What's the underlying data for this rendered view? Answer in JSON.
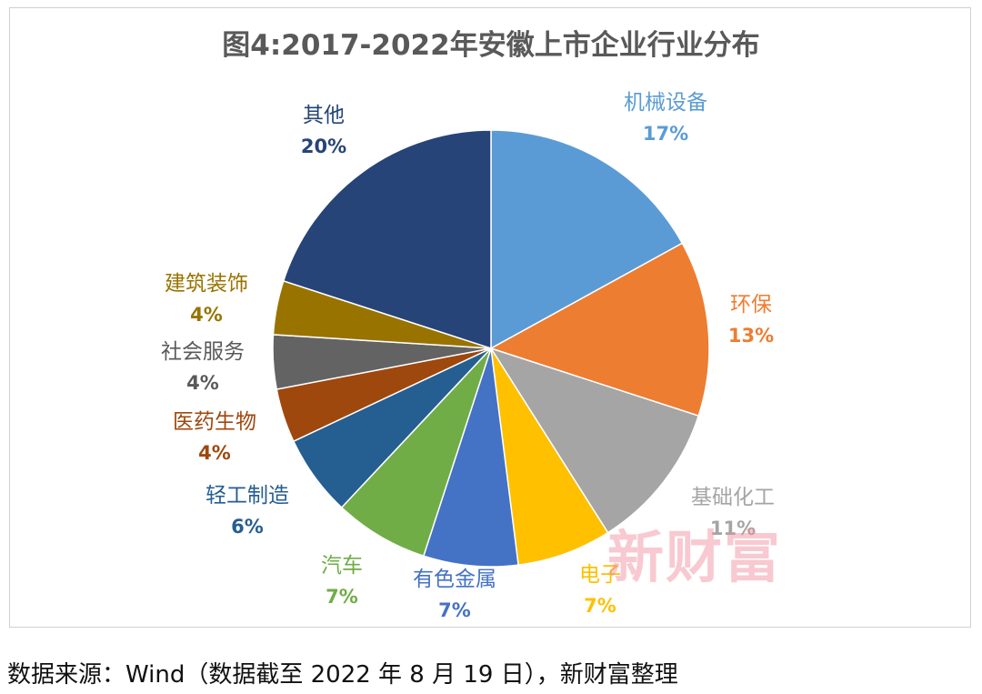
{
  "title": "图4:2017-2022年安徽上市企业行业分布",
  "source": "数据来源：Wind（数据截至 2022 年 8 月 19 日），新财富整理",
  "watermark": "新财富",
  "chart_data": {
    "type": "pie",
    "title": "图4:2017-2022年安徽上市企业行业分布",
    "slices": [
      {
        "name": "机械设备",
        "label": "17%",
        "value": 17,
        "color": "#5B9BD5"
      },
      {
        "name": "环保",
        "label": "13%",
        "value": 13,
        "color": "#ED7D31"
      },
      {
        "name": "基础化工",
        "label": "11%",
        "value": 11,
        "color": "#A5A5A5"
      },
      {
        "name": "电子",
        "label": "7%",
        "value": 7,
        "color": "#FFC000"
      },
      {
        "name": "有色金属",
        "label": "7%",
        "value": 7,
        "color": "#4472C4"
      },
      {
        "name": "汽车",
        "label": "7%",
        "value": 7,
        "color": "#70AD47"
      },
      {
        "name": "轻工制造",
        "label": "6%",
        "value": 6,
        "color": "#255E91"
      },
      {
        "name": "医药生物",
        "label": "4%",
        "value": 4,
        "color": "#9E480E"
      },
      {
        "name": "社会服务",
        "label": "4%",
        "value": 4,
        "color": "#636363"
      },
      {
        "name": "建筑装饰",
        "label": "4%",
        "value": 4,
        "color": "#997300"
      },
      {
        "name": "其他",
        "label": "20%",
        "value": 20,
        "color": "#264478"
      }
    ],
    "label_colors": [
      "#5B9BD5",
      "#ED7D31",
      "#A5A5A5",
      "#FFC000",
      "#4472C4",
      "#70AD47",
      "#255E91",
      "#9E480E",
      "#595959",
      "#997300",
      "#264478"
    ]
  }
}
